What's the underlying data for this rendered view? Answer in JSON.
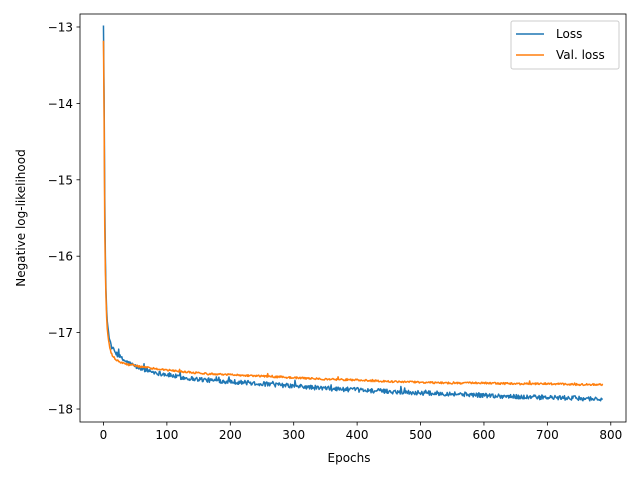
{
  "chart_data": {
    "type": "line",
    "title": "",
    "xlabel": "Epochs",
    "ylabel": "Negative log-likelihood",
    "xlim": [
      -37,
      824
    ],
    "ylim": [
      -18.17,
      -12.83
    ],
    "xticks": [
      0,
      100,
      200,
      300,
      400,
      500,
      600,
      700,
      800
    ],
    "yticks": [
      -18,
      -17,
      -16,
      -15,
      -14,
      -13
    ],
    "ytick_labels": [
      "−18",
      "−17",
      "−16",
      "−15",
      "−14",
      "−13"
    ],
    "grid": false,
    "legend": {
      "placement": "top-right"
    },
    "colors": {
      "Loss": "#1f77b4",
      "Val. loss": "#ff7f0e"
    },
    "n_epochs": 788,
    "series": [
      {
        "name": "Loss",
        "color": "#1f77b4",
        "noise": 0.03,
        "x": [
          0,
          1,
          2,
          3,
          4,
          5,
          6,
          8,
          10,
          12,
          15,
          20,
          25,
          30,
          40,
          50,
          60,
          80,
          100,
          125,
          150,
          175,
          200,
          250,
          300,
          350,
          400,
          450,
          500,
          550,
          600,
          650,
          700,
          750,
          787
        ],
        "y": [
          -12.98,
          -13.9,
          -15.2,
          -16.0,
          -16.45,
          -16.7,
          -16.85,
          -17.0,
          -17.1,
          -17.17,
          -17.22,
          -17.27,
          -17.31,
          -17.35,
          -17.4,
          -17.44,
          -17.47,
          -17.52,
          -17.55,
          -17.59,
          -17.61,
          -17.63,
          -17.64,
          -17.67,
          -17.7,
          -17.73,
          -17.75,
          -17.77,
          -17.79,
          -17.8,
          -17.82,
          -17.84,
          -17.85,
          -17.86,
          -17.87
        ]
      },
      {
        "name": "Val. loss",
        "color": "#ff7f0e",
        "noise": 0.012,
        "x": [
          0,
          1,
          2,
          3,
          4,
          5,
          6,
          8,
          10,
          12,
          15,
          20,
          25,
          30,
          40,
          50,
          60,
          80,
          100,
          125,
          150,
          175,
          200,
          250,
          300,
          350,
          400,
          450,
          500,
          550,
          600,
          650,
          700,
          750,
          787
        ],
        "y": [
          -13.18,
          -14.2,
          -15.6,
          -16.2,
          -16.55,
          -16.8,
          -16.95,
          -17.1,
          -17.2,
          -17.27,
          -17.31,
          -17.36,
          -17.38,
          -17.4,
          -17.42,
          -17.43,
          -17.45,
          -17.47,
          -17.49,
          -17.51,
          -17.53,
          -17.54,
          -17.55,
          -17.57,
          -17.59,
          -17.61,
          -17.62,
          -17.64,
          -17.65,
          -17.66,
          -17.66,
          -17.67,
          -17.67,
          -17.68,
          -17.68
        ]
      }
    ]
  }
}
